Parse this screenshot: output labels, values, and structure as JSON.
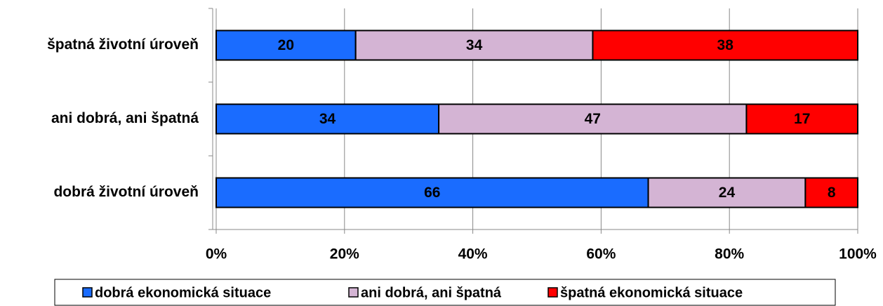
{
  "chart_data": {
    "type": "bar",
    "orientation": "horizontal",
    "stacking": "percent",
    "categories": [
      "špatná životní úroveň",
      "ani dobrá, ani špatná",
      "dobrá životní úroveň"
    ],
    "series": [
      {
        "name": "dobrá ekonomická situace",
        "color": "#1a6cff",
        "values": [
          20,
          34,
          66
        ]
      },
      {
        "name": "ani dobrá, ani špatná",
        "color": "#d4b4d4",
        "values": [
          34,
          47,
          24
        ]
      },
      {
        "name": "špatná ekonomická situace",
        "color": "#ff0000",
        "values": [
          38,
          17,
          8
        ]
      }
    ],
    "xlim": [
      0,
      100
    ],
    "xticks": [
      {
        "value": 0,
        "label": "0%"
      },
      {
        "value": 20,
        "label": "20%"
      },
      {
        "value": 40,
        "label": "40%"
      },
      {
        "value": 60,
        "label": "60%"
      },
      {
        "value": 80,
        "label": "80%"
      },
      {
        "value": 100,
        "label": "100%"
      }
    ],
    "grid": true,
    "legend": "bottom"
  }
}
